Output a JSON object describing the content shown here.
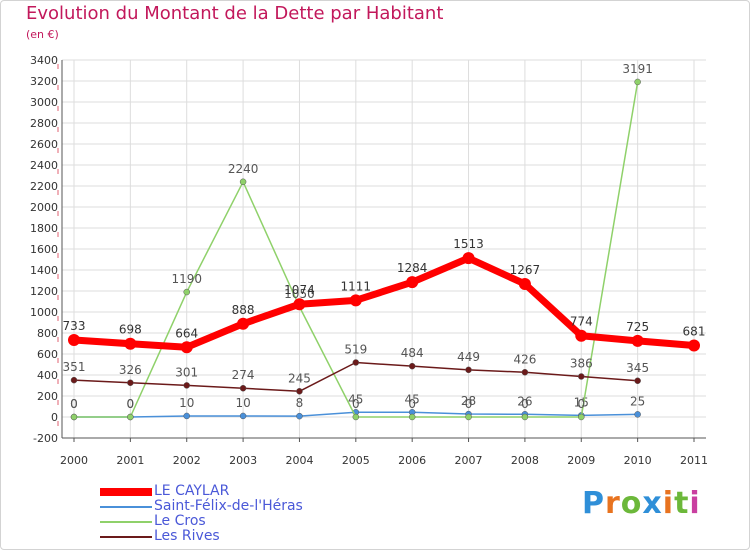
{
  "title": "Evolution du Montant de la Dette par Habitant",
  "subtitle": "(en €)",
  "brand": "Proxiti",
  "brand_colors": [
    "#2f8fd8",
    "#e8731f",
    "#6cb83a",
    "#2f8fd8",
    "#e8731f",
    "#6cb83a",
    "#c93fa0"
  ],
  "chart_data": {
    "type": "line",
    "x": [
      "2000",
      "2001",
      "2002",
      "2003",
      "2004",
      "2005",
      "2006",
      "2007",
      "2008",
      "2009",
      "2010",
      "2011"
    ],
    "ylim": [
      -200,
      3400
    ],
    "yticks": [
      "-200",
      "0",
      "200",
      "400",
      "600",
      "800",
      "1000",
      "1200",
      "1400",
      "1600",
      "1800",
      "2000",
      "2200",
      "2400",
      "2600",
      "2800",
      "3000",
      "3200",
      "3400"
    ],
    "grid": true,
    "legend_position": "bottom-left",
    "series": [
      {
        "name": "LE CAYLAR",
        "color": "#ff0000",
        "values": [
          733,
          698,
          664,
          888,
          1074,
          1111,
          1284,
          1513,
          1267,
          774,
          725,
          681
        ],
        "labels": [
          "733",
          "698",
          "664",
          "888",
          "1074",
          "1111",
          "1284",
          "1513",
          "1267",
          "774",
          "725",
          "681"
        ]
      },
      {
        "name": "Saint-Félix-de-l'Héras",
        "color": "#4a90d9",
        "values": [
          0,
          0,
          10,
          10,
          8,
          45,
          45,
          28,
          26,
          15,
          25,
          null
        ],
        "labels": [
          "0",
          "0",
          "10",
          "10",
          "8",
          "45",
          "45",
          "28",
          "26",
          "15",
          "25",
          ""
        ]
      },
      {
        "name": "Le Cros",
        "color": "#8fd16a",
        "values": [
          0,
          0,
          1190,
          2240,
          1050,
          0,
          0,
          0,
          0,
          0,
          3191,
          null
        ],
        "labels": [
          "0",
          "0",
          "1190",
          "2240",
          "1050",
          "0",
          "0",
          "0",
          "0",
          "0",
          "3191",
          ""
        ]
      },
      {
        "name": "Les Rives",
        "color": "#6b1a1a",
        "values": [
          351,
          326,
          301,
          274,
          245,
          519,
          484,
          449,
          426,
          386,
          345,
          null
        ],
        "labels": [
          "351",
          "326",
          "301",
          "274",
          "245",
          "519",
          "484",
          "449",
          "426",
          "386",
          "345",
          ""
        ]
      }
    ]
  }
}
